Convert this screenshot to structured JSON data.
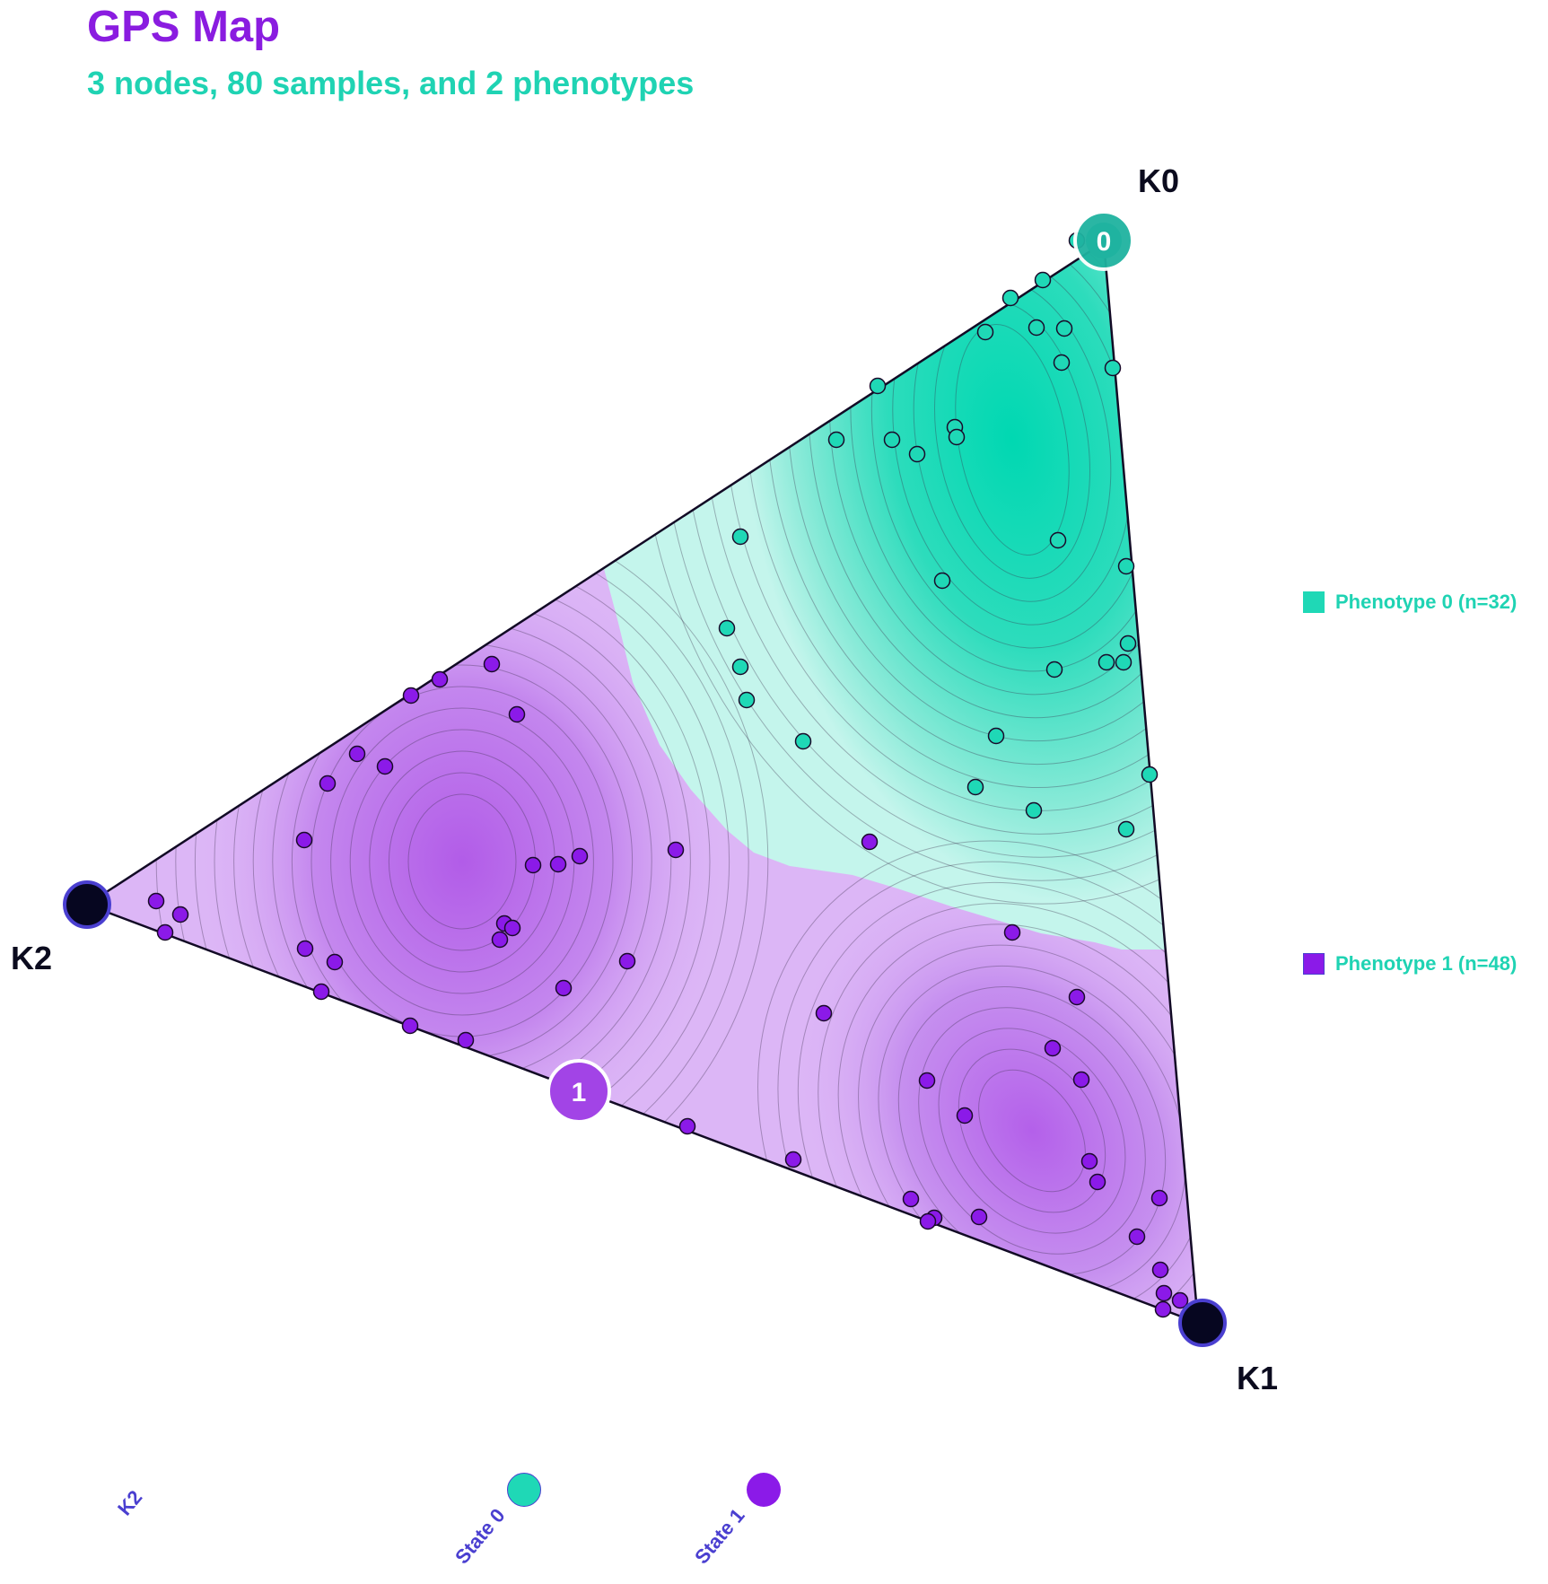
{
  "title": "GPS Map",
  "subtitle": "3 nodes, 80 samples, and 2 phenotypes",
  "colors": {
    "phenotype0": "#1fd8b6",
    "phenotype1": "#8b1ae8",
    "node": "#060620",
    "node_ring": "#4a3fd0"
  },
  "vertices": [
    {
      "label": "K0"
    },
    {
      "label": "K1"
    },
    {
      "label": "K2"
    }
  ],
  "states": [
    {
      "label": "0"
    },
    {
      "label": "1"
    }
  ],
  "legend": [
    {
      "label": "Phenotype 0 (n=32)"
    },
    {
      "label": "Phenotype 1 (n=48)"
    }
  ],
  "bottom_axis": {
    "labels": [
      "K2",
      "State 0",
      "State 1"
    ]
  }
}
